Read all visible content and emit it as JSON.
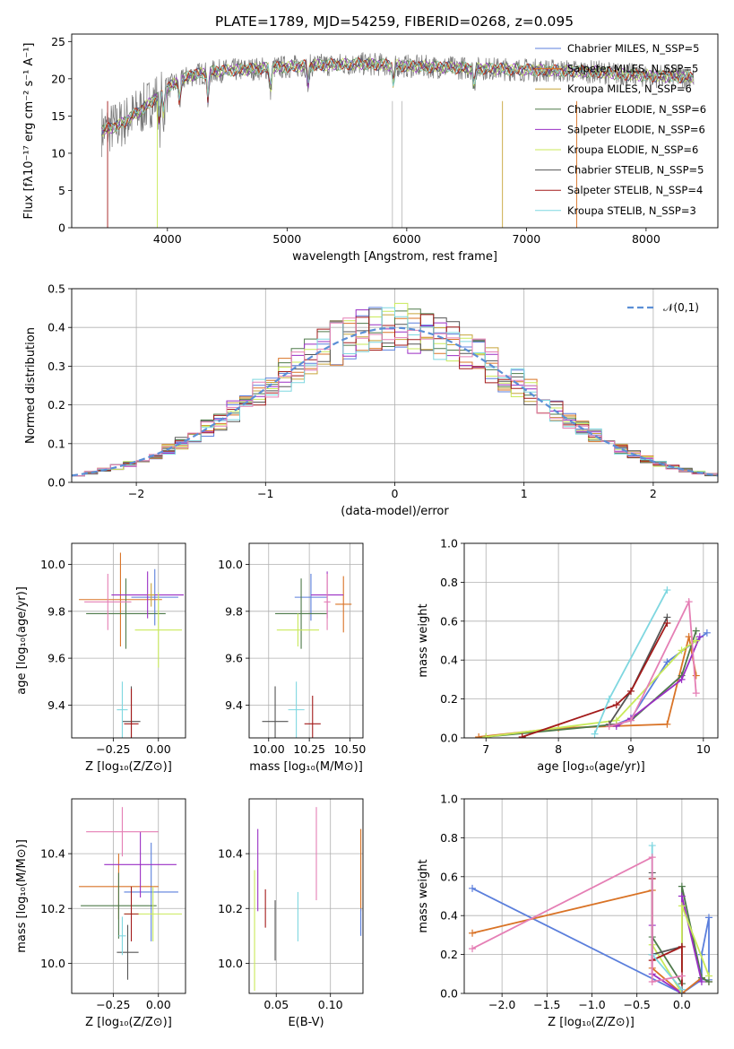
{
  "figure": {
    "title": "PLATE=1789, MJD=54259, FIBERID=0268, z=0.095"
  },
  "colors": {
    "Chabrier MILES": "#5b7fdc",
    "Salpeter MILES": "#d97326",
    "Kroupa MILES": "#c7a53a",
    "Chabrier ELODIE": "#4e7a4a",
    "Salpeter ELODIE": "#9a2fc4",
    "Kroupa ELODIE": "#c9ea5a",
    "Chabrier STELIB": "#555555",
    "Salpeter STELIB": "#a31a1a",
    "Kroupa STELIB": "#7fd7e0",
    "pink": "#e57fb5",
    "normal": "#5b8fd6",
    "data": "#777777"
  },
  "chart_data": [
    {
      "id": "spectrum",
      "type": "line",
      "title": "PLATE=1789, MJD=54259, FIBERID=0268, z=0.095",
      "xlabel": "wavelength [Angstrom, rest frame]",
      "ylabel": "Flux [fλ10⁻¹⁷ erg cm⁻² s⁻¹ A⁻¹]",
      "xlim": [
        3200,
        8600
      ],
      "ylim": [
        0,
        26
      ],
      "xticks": [
        "4000",
        "5000",
        "6000",
        "7000",
        "8000"
      ],
      "yticks": [
        "0",
        "5",
        "10",
        "15",
        "20",
        "25"
      ],
      "grid": false,
      "legend_position": "right",
      "legend": [
        "Chabrier MILES, N_SSP=5",
        "Salpeter MILES, N_SSP=5",
        "Kroupa MILES, N_SSP=6",
        "Chabrier ELODIE, N_SSP=6",
        "Salpeter ELODIE, N_SSP=6",
        "Kroupa ELODIE, N_SSP=6",
        "Chabrier STELIB, N_SSP=5",
        "Salpeter STELIB, N_SSP=4",
        "Kroupa STELIB, N_SSP=3"
      ],
      "continuum": {
        "x": [
          3450,
          3600,
          3800,
          4000,
          4200,
          4400,
          4600,
          4800,
          5000,
          5200,
          5400,
          5600,
          5800,
          6000,
          6200,
          6400,
          6600,
          6800,
          7000,
          7200,
          7400,
          7600,
          7800,
          8000,
          8200,
          8400
        ],
        "y": [
          13.0,
          13.8,
          16.0,
          18.8,
          20.5,
          21.0,
          21.2,
          21.4,
          21.6,
          21.8,
          21.9,
          22.0,
          21.9,
          21.7,
          21.6,
          21.5,
          21.4,
          21.3,
          21.2,
          21.1,
          21.0,
          20.9,
          20.6,
          20.4,
          20.3,
          20.2
        ]
      },
      "absorption_lines": [
        {
          "x": 3934,
          "depth": 4.5
        },
        {
          "x": 3969,
          "depth": 3.5
        },
        {
          "x": 4102,
          "depth": 3.0
        },
        {
          "x": 4340,
          "depth": 4.0
        },
        {
          "x": 4861,
          "depth": 3.5
        },
        {
          "x": 5175,
          "depth": 3.0
        },
        {
          "x": 5890,
          "depth": 3.0
        },
        {
          "x": 6563,
          "depth": 3.0
        }
      ]
    },
    {
      "id": "residuals",
      "type": "histogram",
      "xlabel": "(data-model)/error",
      "ylabel": "Normed distribution",
      "xlim": [
        -2.5,
        2.5
      ],
      "ylim": [
        0,
        0.5
      ],
      "xticks": [
        "−2",
        "−1",
        "0",
        "1",
        "2"
      ],
      "yticks": [
        "0.0",
        "0.1",
        "0.2",
        "0.3",
        "0.4",
        "0.5"
      ],
      "grid": true,
      "legend_position": "upper right",
      "legend": [
        "𝒩(0,1)"
      ],
      "normal_mean": 0,
      "normal_sigma": 1,
      "bin_width": 0.1
    },
    {
      "id": "age_vs_Z",
      "type": "errorbar",
      "xlabel": "Z [log₁₀(Z/Z⊙)]",
      "ylabel": "age [log₁₀(age/yr)]",
      "xlim": [
        -0.48,
        0.15
      ],
      "ylim": [
        9.26,
        10.09
      ],
      "xticks": [
        {
          "v": -0.25,
          "t": "−0.25"
        },
        {
          "v": 0,
          "t": "0.00"
        }
      ],
      "yticks": [
        {
          "v": 9.4,
          "t": "9.4"
        },
        {
          "v": 9.6,
          "t": "9.6"
        },
        {
          "v": 9.8,
          "t": "9.8"
        },
        {
          "v": 10.0,
          "t": "10.0"
        }
      ],
      "points": [
        {
          "c": "Chabrier MILES",
          "x": -0.02,
          "y": 9.86,
          "xe": 0.13,
          "ye": 0.12
        },
        {
          "c": "Salpeter MILES",
          "x": -0.21,
          "y": 9.85,
          "xe": 0.23,
          "ye": 0.2
        },
        {
          "c": "Chabrier ELODIE",
          "x": -0.18,
          "y": 9.79,
          "xe": 0.22,
          "ye": 0.15
        },
        {
          "c": "Salpeter ELODIE",
          "x": -0.06,
          "y": 9.87,
          "xe": 0.2,
          "ye": 0.1
        },
        {
          "c": "Kroupa ELODIE",
          "x": 0.0,
          "y": 9.72,
          "xe": 0.13,
          "ye": 0.16
        },
        {
          "c": "Chabrier STELIB",
          "x": -0.15,
          "y": 9.33,
          "xe": 0.05,
          "ye": 0.15
        },
        {
          "c": "Salpeter STELIB",
          "x": -0.15,
          "y": 9.32,
          "xe": 0.04,
          "ye": 0.15
        },
        {
          "c": "Kroupa STELIB",
          "x": -0.2,
          "y": 9.38,
          "xe": 0.03,
          "ye": 0.12
        },
        {
          "c": "pink",
          "x": -0.28,
          "y": 9.84,
          "xe": 0.13,
          "ye": 0.12
        },
        {
          "c": "Kroupa MILES",
          "x": -0.04,
          "y": 9.87,
          "xe": 0.02,
          "ye": 0.05
        }
      ]
    },
    {
      "id": "age_vs_mass",
      "type": "errorbar",
      "xlabel": "mass [log₁₀(M/M⊙)]",
      "ylabel": "",
      "xlim": [
        9.88,
        10.58
      ],
      "ylim": [
        9.26,
        10.09
      ],
      "xticks": [
        {
          "v": 10.0,
          "t": "10.00"
        },
        {
          "v": 10.25,
          "t": "10.25"
        },
        {
          "v": 10.5,
          "t": "10.50"
        }
      ],
      "yticks": [
        {
          "v": 9.4,
          "t": "9.4"
        },
        {
          "v": 9.6,
          "t": "9.6"
        },
        {
          "v": 9.8,
          "t": "9.8"
        },
        {
          "v": 10.0,
          "t": "10.0"
        }
      ],
      "points": [
        {
          "c": "Chabrier MILES",
          "x": 10.26,
          "y": 9.86,
          "xe": 0.1,
          "ye": 0.1
        },
        {
          "c": "Salpeter MILES",
          "x": 10.46,
          "y": 9.83,
          "xe": 0.05,
          "ye": 0.12
        },
        {
          "c": "Chabrier ELODIE",
          "x": 10.2,
          "y": 9.79,
          "xe": 0.16,
          "ye": 0.15
        },
        {
          "c": "Salpeter ELODIE",
          "x": 10.36,
          "y": 9.87,
          "xe": 0.1,
          "ye": 0.1
        },
        {
          "c": "Kroupa ELODIE",
          "x": 10.18,
          "y": 9.72,
          "xe": 0.13,
          "ye": 0.07
        },
        {
          "c": "Chabrier STELIB",
          "x": 10.04,
          "y": 9.33,
          "xe": 0.08,
          "ye": 0.15
        },
        {
          "c": "Salpeter STELIB",
          "x": 10.27,
          "y": 9.32,
          "xe": 0.05,
          "ye": 0.12
        },
        {
          "c": "Kroupa STELIB",
          "x": 10.17,
          "y": 9.38,
          "xe": 0.05,
          "ye": 0.12
        },
        {
          "c": "pink",
          "x": 10.36,
          "y": 9.84,
          "xe": 0.02,
          "ye": 0.12
        }
      ]
    },
    {
      "id": "mass_weight_vs_age",
      "type": "line",
      "xlabel": "age [log₁₀(age/yr)]",
      "ylabel": "mass weight",
      "xlim": [
        6.7,
        10.2
      ],
      "ylim": [
        0,
        1.0
      ],
      "xticks": [
        {
          "v": 7,
          "t": "7"
        },
        {
          "v": 8,
          "t": "8"
        },
        {
          "v": 9,
          "t": "9"
        },
        {
          "v": 10,
          "t": "10"
        }
      ],
      "yticks": [
        {
          "v": 0,
          "t": "0.0"
        },
        {
          "v": 0.2,
          "t": "0.2"
        },
        {
          "v": 0.4,
          "t": "0.4"
        },
        {
          "v": 0.6,
          "t": "0.6"
        },
        {
          "v": 0.8,
          "t": "0.8"
        },
        {
          "v": 1.0,
          "t": "1.0"
        }
      ],
      "series": [
        {
          "c": "Chabrier MILES",
          "x": [
            8.8,
            9.0,
            9.5,
            9.9,
            10.05
          ],
          "y": [
            0.07,
            0.1,
            0.39,
            0.5,
            0.54
          ]
        },
        {
          "c": "Salpeter MILES",
          "x": [
            6.9,
            8.0,
            9.5,
            9.8,
            9.9
          ],
          "y": [
            0.005,
            0.05,
            0.07,
            0.52,
            0.32
          ]
        },
        {
          "c": "Chabrier ELODIE",
          "x": [
            7.0,
            8.8,
            9.0,
            9.7,
            9.9
          ],
          "y": [
            0.005,
            0.07,
            0.09,
            0.32,
            0.55
          ]
        },
        {
          "c": "Salpeter ELODIE",
          "x": [
            8.8,
            9.0,
            9.7,
            9.95
          ],
          "y": [
            0.06,
            0.1,
            0.3,
            0.52
          ]
        },
        {
          "c": "Kroupa ELODIE",
          "x": [
            7.0,
            8.8,
            9.7,
            9.9
          ],
          "y": [
            0.005,
            0.09,
            0.45,
            0.5
          ]
        },
        {
          "c": "Chabrier STELIB",
          "x": [
            8.7,
            9.0,
            9.5
          ],
          "y": [
            0.07,
            0.24,
            0.62
          ]
        },
        {
          "c": "Salpeter STELIB",
          "x": [
            7.5,
            8.8,
            9.0,
            9.5
          ],
          "y": [
            0.005,
            0.17,
            0.24,
            0.59
          ]
        },
        {
          "c": "Kroupa STELIB",
          "x": [
            8.5,
            8.7,
            9.5
          ],
          "y": [
            0.02,
            0.2,
            0.76
          ]
        },
        {
          "c": "pink",
          "x": [
            8.7,
            9.0,
            9.8,
            9.9
          ],
          "y": [
            0.06,
            0.09,
            0.7,
            0.23
          ]
        }
      ]
    },
    {
      "id": "mass_vs_Z",
      "type": "errorbar",
      "xlabel": "Z [log₁₀(Z/Z⊙)]",
      "ylabel": "mass [log₁₀(M/M⊙)]",
      "xlim": [
        -0.48,
        0.15
      ],
      "ylim": [
        9.89,
        10.6
      ],
      "xticks": [
        {
          "v": -0.25,
          "t": "−0.25"
        },
        {
          "v": 0,
          "t": "0.00"
        }
      ],
      "yticks": [
        {
          "v": 10.0,
          "t": "10.0"
        },
        {
          "v": 10.2,
          "t": "10.2"
        },
        {
          "v": 10.4,
          "t": "10.4"
        }
      ],
      "points": [
        {
          "c": "Chabrier MILES",
          "x": -0.04,
          "y": 10.26,
          "xe": 0.15,
          "ye": 0.18
        },
        {
          "c": "Salpeter MILES",
          "x": -0.22,
          "y": 10.28,
          "xe": 0.22,
          "ye": 0.12
        },
        {
          "c": "Chabrier ELODIE",
          "x": -0.22,
          "y": 10.21,
          "xe": 0.21,
          "ye": 0.12
        },
        {
          "c": "Salpeter ELODIE",
          "x": -0.1,
          "y": 10.36,
          "xe": 0.2,
          "ye": 0.12
        },
        {
          "c": "Kroupa ELODIE",
          "x": -0.03,
          "y": 10.18,
          "xe": 0.16,
          "ye": 0.1
        },
        {
          "c": "Chabrier STELIB",
          "x": -0.17,
          "y": 10.04,
          "xe": 0.06,
          "ye": 0.1
        },
        {
          "c": "Salpeter STELIB",
          "x": -0.15,
          "y": 10.18,
          "xe": 0.04,
          "ye": 0.1
        },
        {
          "c": "Kroupa STELIB",
          "x": -0.2,
          "y": 10.1,
          "xe": 0.02,
          "ye": 0.07
        },
        {
          "c": "pink",
          "x": -0.2,
          "y": 10.48,
          "xe": 0.2,
          "ye": 0.09
        }
      ]
    },
    {
      "id": "mass_vs_EBV",
      "type": "errorbar",
      "xlabel": "E(B-V)",
      "ylabel": "",
      "xlim": [
        0.025,
        0.13
      ],
      "ylim": [
        9.89,
        10.6
      ],
      "xticks": [
        {
          "v": 0.05,
          "t": "0.05"
        },
        {
          "v": 0.1,
          "t": "0.10"
        }
      ],
      "yticks": [
        {
          "v": 10.0,
          "t": "10.0"
        },
        {
          "v": 10.2,
          "t": "10.2"
        },
        {
          "v": 10.4,
          "t": "10.4"
        }
      ],
      "points": [
        {
          "c": "Kroupa ELODIE",
          "x": 0.03,
          "y": 10.12,
          "xe": 0,
          "ye": 0.22
        },
        {
          "c": "Salpeter ELODIE",
          "x": 0.033,
          "y": 10.34,
          "xe": 0,
          "ye": 0.15
        },
        {
          "c": "Salpeter STELIB",
          "x": 0.04,
          "y": 10.2,
          "xe": 0,
          "ye": 0.07
        },
        {
          "c": "Chabrier STELIB",
          "x": 0.049,
          "y": 10.12,
          "xe": 0,
          "ye": 0.11
        },
        {
          "c": "Kroupa STELIB",
          "x": 0.07,
          "y": 10.17,
          "xe": 0,
          "ye": 0.09
        },
        {
          "c": "pink",
          "x": 0.087,
          "y": 10.4,
          "xe": 0,
          "ye": 0.17
        },
        {
          "c": "Salpeter MILES",
          "x": 0.128,
          "y": 10.34,
          "xe": 0,
          "ye": 0.15
        },
        {
          "c": "Chabrier MILES",
          "x": 0.128,
          "y": 10.15,
          "xe": 0,
          "ye": 0.05
        }
      ]
    },
    {
      "id": "mass_weight_vs_Z",
      "type": "line",
      "xlabel": "Z [log₁₀(Z/Z⊙)]",
      "ylabel": "mass weight",
      "xlim": [
        -2.42,
        0.4
      ],
      "ylim": [
        0,
        1.0
      ],
      "xticks": [
        {
          "v": -2.0,
          "t": "−2.0"
        },
        {
          "v": -1.5,
          "t": "−1.5"
        },
        {
          "v": -1.0,
          "t": "−1.0"
        },
        {
          "v": -0.5,
          "t": "−0.5"
        },
        {
          "v": 0.0,
          "t": "0.0"
        }
      ],
      "yticks": [
        {
          "v": 0,
          "t": "0.0"
        },
        {
          "v": 0.2,
          "t": "0.2"
        },
        {
          "v": 0.4,
          "t": "0.4"
        },
        {
          "v": 0.6,
          "t": "0.6"
        },
        {
          "v": 0.8,
          "t": "0.8"
        },
        {
          "v": 1.0,
          "t": "1.0"
        }
      ],
      "series": [
        {
          "c": "Chabrier MILES",
          "x": [
            -2.33,
            0.0,
            0.22,
            0.22,
            0.3,
            0.3
          ],
          "y": [
            0.54,
            0.0,
            0.07,
            0.2,
            0.39,
            0.07
          ]
        },
        {
          "c": "Salpeter MILES",
          "x": [
            -2.33,
            -0.33,
            -0.33,
            0.0,
            0.22,
            0.3
          ],
          "y": [
            0.31,
            0.53,
            0.13,
            0.0,
            0.08,
            0.06
          ]
        },
        {
          "c": "Chabrier ELODIE",
          "x": [
            -0.33,
            0.0,
            0.0,
            0.22,
            0.3
          ],
          "y": [
            0.29,
            0.05,
            0.55,
            0.08,
            0.06
          ]
        },
        {
          "c": "Salpeter ELODIE",
          "x": [
            -0.33,
            -0.33,
            0.0,
            0.0,
            0.22
          ],
          "y": [
            0.35,
            0.1,
            0.0,
            0.5,
            0.06
          ]
        },
        {
          "c": "Kroupa ELODIE",
          "x": [
            -0.33,
            0.0,
            0.0,
            0.3
          ],
          "y": [
            0.25,
            0.0,
            0.45,
            0.09
          ]
        },
        {
          "c": "Chabrier STELIB",
          "x": [
            -0.33,
            -0.33,
            0.0
          ],
          "y": [
            0.62,
            0.2,
            0.24
          ]
        },
        {
          "c": "Salpeter STELIB",
          "x": [
            -0.33,
            -0.33,
            0.0,
            0.0
          ],
          "y": [
            0.59,
            0.17,
            0.24,
            0.0
          ]
        },
        {
          "c": "Kroupa STELIB",
          "x": [
            -0.33,
            -0.33,
            0.0
          ],
          "y": [
            0.76,
            0.2,
            0.02
          ]
        },
        {
          "c": "pink",
          "x": [
            -2.33,
            -0.33,
            -0.33,
            0.0
          ],
          "y": [
            0.23,
            0.7,
            0.06,
            0.09
          ]
        }
      ]
    }
  ]
}
